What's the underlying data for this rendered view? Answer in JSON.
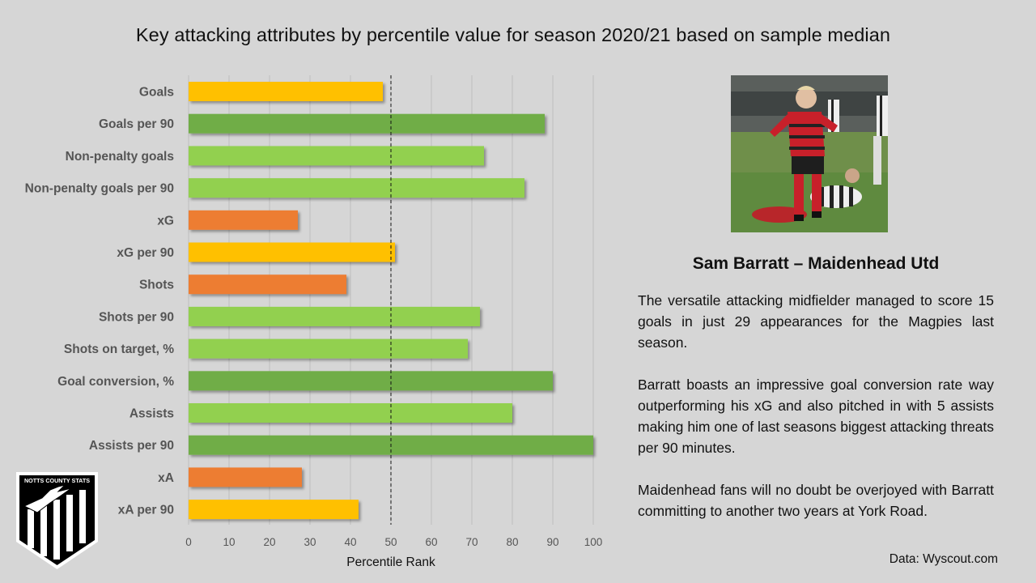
{
  "title": "Key attacking attributes by percentile value for season 2020/21 based on sample median",
  "chart_data": {
    "type": "bar",
    "orientation": "horizontal",
    "title": "Key attacking attributes by percentile value for season 2020/21 based on sample median",
    "xlabel": "Percentile Rank",
    "ylabel": "",
    "xlim": [
      0,
      100
    ],
    "xticks": [
      0,
      10,
      20,
      30,
      40,
      50,
      60,
      70,
      80,
      90,
      100
    ],
    "grid": "vertical",
    "median_line": 50,
    "categories": [
      "Goals",
      "Goals per 90",
      "Non-penalty goals",
      "Non-penalty goals per 90",
      "xG",
      "xG per 90",
      "Shots",
      "Shots per 90",
      "Shots on target, %",
      "Goal conversion, %",
      "Assists",
      "Assists per 90",
      "xA",
      "xA per 90"
    ],
    "values": [
      48,
      88,
      73,
      83,
      27,
      51,
      39,
      72,
      69,
      90,
      80,
      100,
      28,
      42
    ],
    "colors": [
      "#ffc000",
      "#70ad47",
      "#92d050",
      "#92d050",
      "#ed7d31",
      "#ffc000",
      "#ed7d31",
      "#92d050",
      "#92d050",
      "#70ad47",
      "#92d050",
      "#70ad47",
      "#ed7d31",
      "#ffc000"
    ]
  },
  "player": {
    "name": "Sam Barratt – Maidenhead Utd",
    "paragraphs": [
      "The versatile attacking midfielder managed to score 15 goals in just 29 appearances for the Magpies last season.",
      "Barratt boasts an impressive goal conversion rate way outperforming his xG and also pitched in with 5 assists making him one of last seasons biggest attacking threats per 90 minutes.",
      "Maidenhead fans will no doubt be overjoyed with Barratt committing to another two years at York Road."
    ]
  },
  "source": "Data: Wyscout.com",
  "logo": {
    "text": "NOTTS COUNTY STATS"
  }
}
